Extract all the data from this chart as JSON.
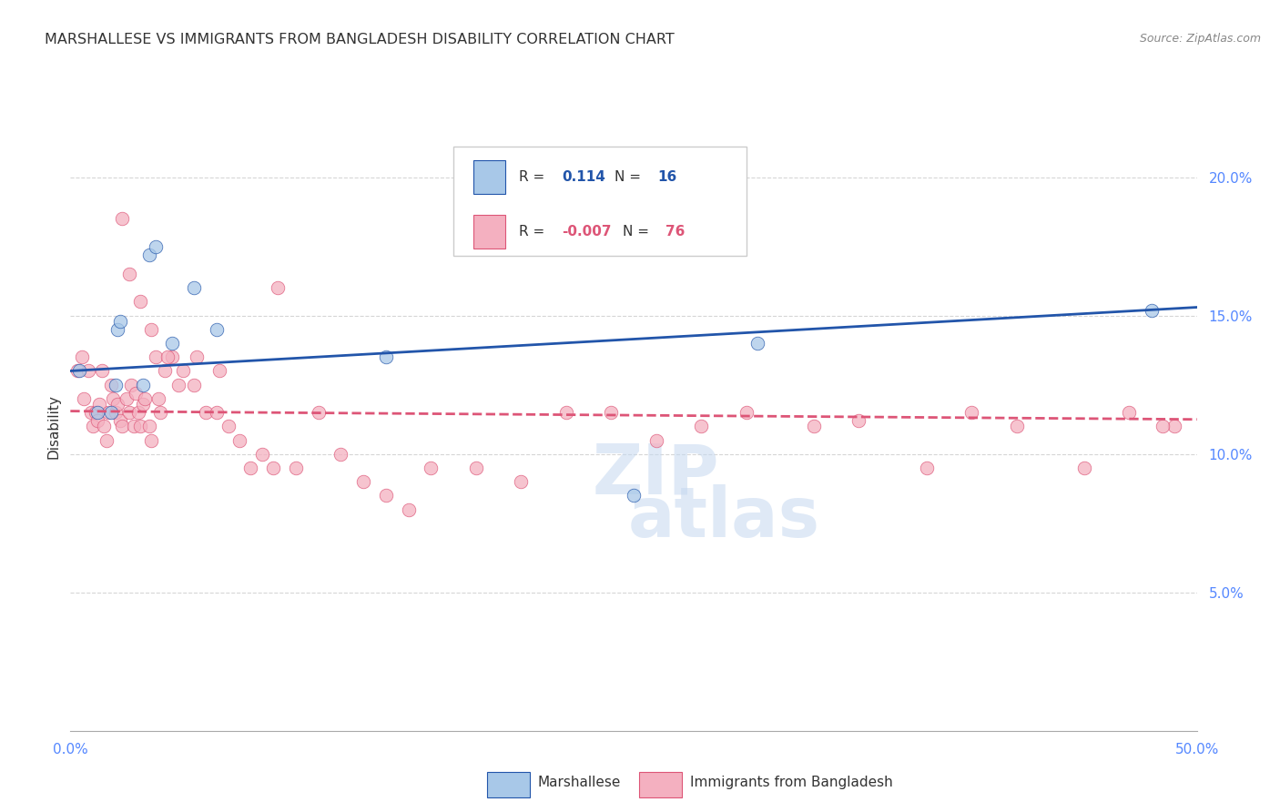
{
  "title": "MARSHALLESE VS IMMIGRANTS FROM BANGLADESH DISABILITY CORRELATION CHART",
  "source": "Source: ZipAtlas.com",
  "ylabel": "Disability",
  "xlim": [
    0,
    50
  ],
  "ylim": [
    0,
    22
  ],
  "yticks": [
    5,
    10,
    15,
    20
  ],
  "ytick_labels": [
    "5.0%",
    "10.0%",
    "15.0%",
    "20.0%"
  ],
  "xtick_positions": [
    0,
    6.25,
    12.5,
    18.75,
    25,
    31.25,
    37.5,
    43.75,
    50
  ],
  "legend_r_blue_label": "R = ",
  "legend_r_blue_val": "0.114",
  "legend_n_blue_label": "N = ",
  "legend_n_blue_val": "16",
  "legend_r_pink_label": "R = ",
  "legend_r_pink_val": "-0.007",
  "legend_n_pink_label": "N = ",
  "legend_n_pink_val": "76",
  "legend_label_blue": "Marshallese",
  "legend_label_pink": "Immigrants from Bangladesh",
  "blue_color": "#a8c8e8",
  "pink_color": "#f4b0c0",
  "trend_blue_color": "#2255aa",
  "trend_pink_color": "#dd5577",
  "blue_points_x": [
    0.4,
    1.2,
    1.8,
    2.0,
    2.1,
    2.2,
    3.5,
    3.8,
    4.5,
    5.5,
    6.5,
    14.0,
    25.0,
    30.5,
    48.0,
    3.2
  ],
  "blue_points_y": [
    13.0,
    11.5,
    11.5,
    12.5,
    14.5,
    14.8,
    17.2,
    17.5,
    14.0,
    16.0,
    14.5,
    13.5,
    8.5,
    14.0,
    15.2,
    12.5
  ],
  "pink_points_x": [
    0.3,
    0.5,
    0.6,
    0.8,
    0.9,
    1.0,
    1.1,
    1.2,
    1.3,
    1.4,
    1.5,
    1.6,
    1.7,
    1.8,
    1.9,
    2.0,
    2.1,
    2.2,
    2.3,
    2.5,
    2.6,
    2.7,
    2.8,
    2.9,
    3.0,
    3.1,
    3.2,
    3.3,
    3.5,
    3.6,
    3.8,
    3.9,
    4.0,
    4.2,
    4.5,
    4.8,
    5.0,
    5.5,
    6.0,
    6.5,
    7.0,
    7.5,
    8.0,
    8.5,
    9.0,
    10.0,
    11.0,
    12.0,
    13.0,
    14.0,
    15.0,
    16.0,
    18.0,
    20.0,
    22.0,
    24.0,
    26.0,
    28.0,
    30.0,
    33.0,
    35.0,
    38.0,
    40.0,
    42.0,
    45.0,
    47.0,
    49.0,
    2.3,
    2.6,
    3.1,
    3.6,
    4.3,
    5.6,
    6.6,
    9.2,
    48.5
  ],
  "pink_points_y": [
    13.0,
    13.5,
    12.0,
    13.0,
    11.5,
    11.0,
    11.5,
    11.2,
    11.8,
    13.0,
    11.0,
    10.5,
    11.5,
    12.5,
    12.0,
    11.5,
    11.8,
    11.2,
    11.0,
    12.0,
    11.5,
    12.5,
    11.0,
    12.2,
    11.5,
    11.0,
    11.8,
    12.0,
    11.0,
    10.5,
    13.5,
    12.0,
    11.5,
    13.0,
    13.5,
    12.5,
    13.0,
    12.5,
    11.5,
    11.5,
    11.0,
    10.5,
    9.5,
    10.0,
    9.5,
    9.5,
    11.5,
    10.0,
    9.0,
    8.5,
    8.0,
    9.5,
    9.5,
    9.0,
    11.5,
    11.5,
    10.5,
    11.0,
    11.5,
    11.0,
    11.2,
    9.5,
    11.5,
    11.0,
    9.5,
    11.5,
    11.0,
    18.5,
    16.5,
    15.5,
    14.5,
    13.5,
    13.5,
    13.0,
    16.0,
    11.0
  ],
  "blue_trend_x": [
    0,
    50
  ],
  "blue_trend_y": [
    13.0,
    15.3
  ],
  "pink_trend_x": [
    0,
    50
  ],
  "pink_trend_y": [
    11.55,
    11.25
  ],
  "watermark_line1": "ZIP",
  "watermark_line2": "atlas",
  "bg_color": "#ffffff",
  "grid_color": "#cccccc",
  "title_color": "#333333",
  "axis_color": "#5588ff",
  "source_color": "#888888",
  "legend_border_color": "#cccccc",
  "title_fontsize": 11.5,
  "source_fontsize": 9,
  "tick_fontsize": 11,
  "ylabel_fontsize": 11
}
